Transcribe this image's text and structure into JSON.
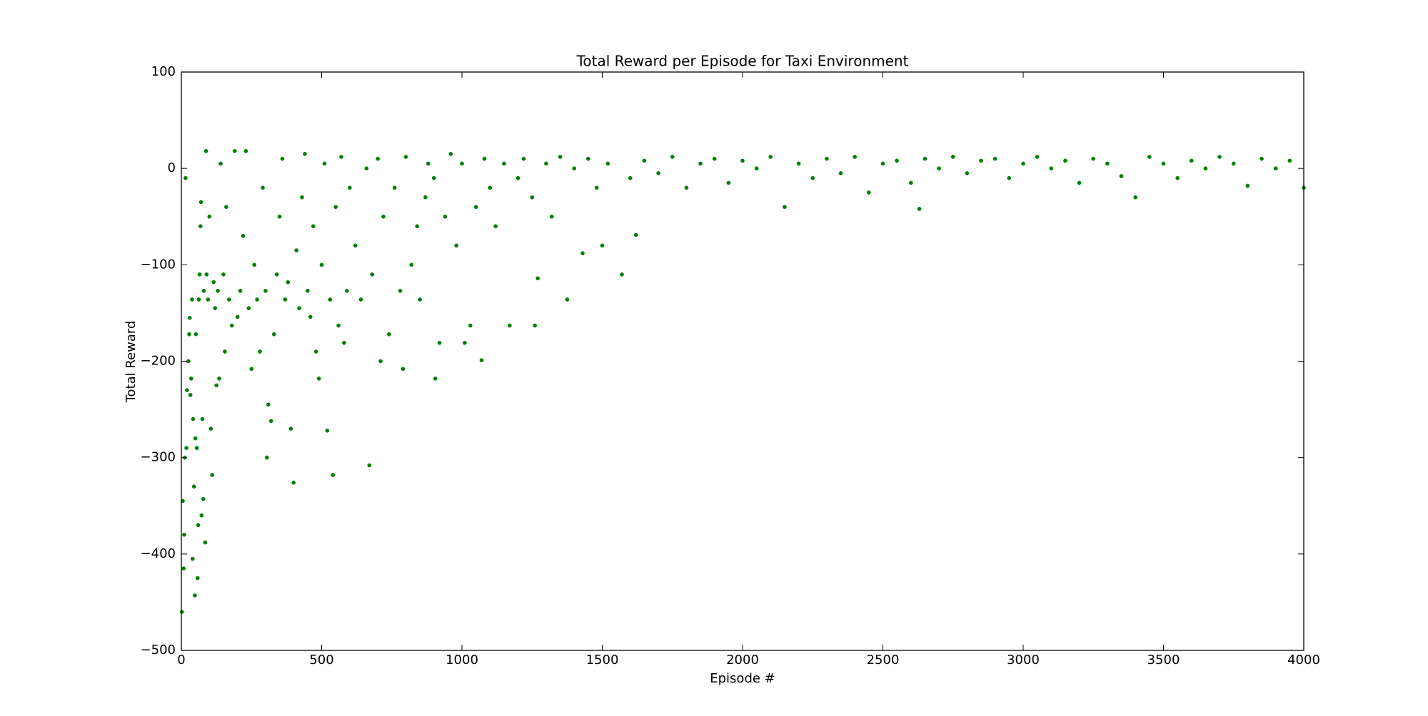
{
  "chart_data": {
    "type": "scatter",
    "title": "Total Reward per Episode for Taxi Environment",
    "x_label": "Episode #",
    "y_label": "Total Reward",
    "color": "#008000",
    "xlim": [
      0,
      4000
    ],
    "xticks": [
      0,
      500,
      1000,
      1500,
      2000,
      2500,
      3000,
      3500,
      4000
    ],
    "ylim": [
      -500,
      100
    ],
    "yticks": [
      {
        "value": -500,
        "label": "−500"
      },
      {
        "value": -400,
        "label": "−400"
      },
      {
        "value": -300,
        "label": "−300"
      },
      {
        "value": -200,
        "label": "−200"
      },
      {
        "value": -100,
        "label": "−100"
      },
      0,
      100
    ],
    "x": [
      2,
      5,
      8,
      10,
      12,
      15,
      18,
      20,
      25,
      28,
      30,
      32,
      35,
      38,
      40,
      42,
      45,
      48,
      50,
      52,
      55,
      58,
      60,
      62,
      65,
      68,
      70,
      72,
      75,
      78,
      80,
      85,
      88,
      90,
      95,
      100,
      105,
      110,
      115,
      120,
      125,
      130,
      135,
      140,
      150,
      155,
      160,
      170,
      180,
      190,
      200,
      210,
      220,
      230,
      240,
      250,
      260,
      270,
      280,
      290,
      300,
      305,
      310,
      320,
      330,
      340,
      350,
      360,
      370,
      380,
      390,
      400,
      410,
      420,
      430,
      440,
      450,
      460,
      470,
      480,
      490,
      500,
      510,
      520,
      530,
      540,
      550,
      560,
      570,
      580,
      590,
      600,
      620,
      640,
      660,
      670,
      680,
      700,
      710,
      720,
      740,
      760,
      780,
      790,
      800,
      820,
      840,
      850,
      870,
      880,
      900,
      905,
      920,
      940,
      960,
      980,
      1000,
      1010,
      1030,
      1050,
      1070,
      1080,
      1100,
      1120,
      1150,
      1170,
      1200,
      1220,
      1250,
      1260,
      1270,
      1300,
      1320,
      1350,
      1375,
      1400,
      1430,
      1450,
      1480,
      1500,
      1520,
      1570,
      1600,
      1620,
      1650,
      1700,
      1750,
      1800,
      1850,
      1900,
      1950,
      2000,
      2050,
      2100,
      2150,
      2200,
      2250,
      2300,
      2350,
      2400,
      2450,
      2500,
      2550,
      2600,
      2630,
      2650,
      2700,
      2750,
      2800,
      2850,
      2900,
      2950,
      3000,
      3050,
      3100,
      3150,
      3200,
      3250,
      3300,
      3350,
      3400,
      3450,
      3500,
      3550,
      3600,
      3650,
      3700,
      3750,
      3800,
      3850,
      3900,
      3950,
      4000
    ],
    "y": [
      -460,
      -345,
      -415,
      -380,
      -300,
      -10,
      -290,
      -230,
      -200,
      -172,
      -155,
      -235,
      -218,
      -136,
      -405,
      -260,
      -330,
      -443,
      -280,
      -172,
      -290,
      -425,
      -370,
      -136,
      -110,
      -60,
      -35,
      -360,
      -260,
      -343,
      -127,
      -388,
      18,
      -110,
      -136,
      -50,
      -270,
      -318,
      -118,
      -145,
      -225,
      -127,
      -218,
      5,
      -110,
      -190,
      -40,
      -136,
      -163,
      18,
      -154,
      -127,
      -70,
      18,
      -145,
      -208,
      -100,
      -136,
      -190,
      -20,
      -127,
      -300,
      -245,
      -262,
      -172,
      -110,
      -50,
      10,
      -136,
      -118,
      -270,
      -326,
      -85,
      -145,
      -30,
      15,
      -127,
      -154,
      -60,
      -190,
      -218,
      -100,
      5,
      -272,
      -136,
      -318,
      -40,
      -163,
      12,
      -181,
      -127,
      -20,
      -80,
      -136,
      0,
      -308,
      -110,
      10,
      -200,
      -50,
      -172,
      -20,
      -127,
      -208,
      12,
      -100,
      -60,
      -136,
      -30,
      5,
      -10,
      -218,
      -181,
      -50,
      15,
      -80,
      5,
      -181,
      -163,
      -40,
      -199,
      10,
      -20,
      -60,
      5,
      -163,
      -10,
      10,
      -30,
      -163,
      -114,
      5,
      -50,
      12,
      -136,
      0,
      -88,
      10,
      -20,
      -80,
      5,
      -110,
      -10,
      -69,
      8,
      -5,
      12,
      -20,
      5,
      10,
      -15,
      8,
      0,
      12,
      -40,
      5,
      -10,
      10,
      -5,
      12,
      -25,
      5,
      8,
      -15,
      -42,
      10,
      0,
      12,
      -5,
      8,
      10,
      -10,
      5,
      12,
      0,
      8,
      -15,
      10,
      5,
      -8,
      -30,
      12,
      5,
      -10,
      8,
      0,
      12,
      5,
      -18,
      10,
      0,
      8,
      -20
    ]
  }
}
